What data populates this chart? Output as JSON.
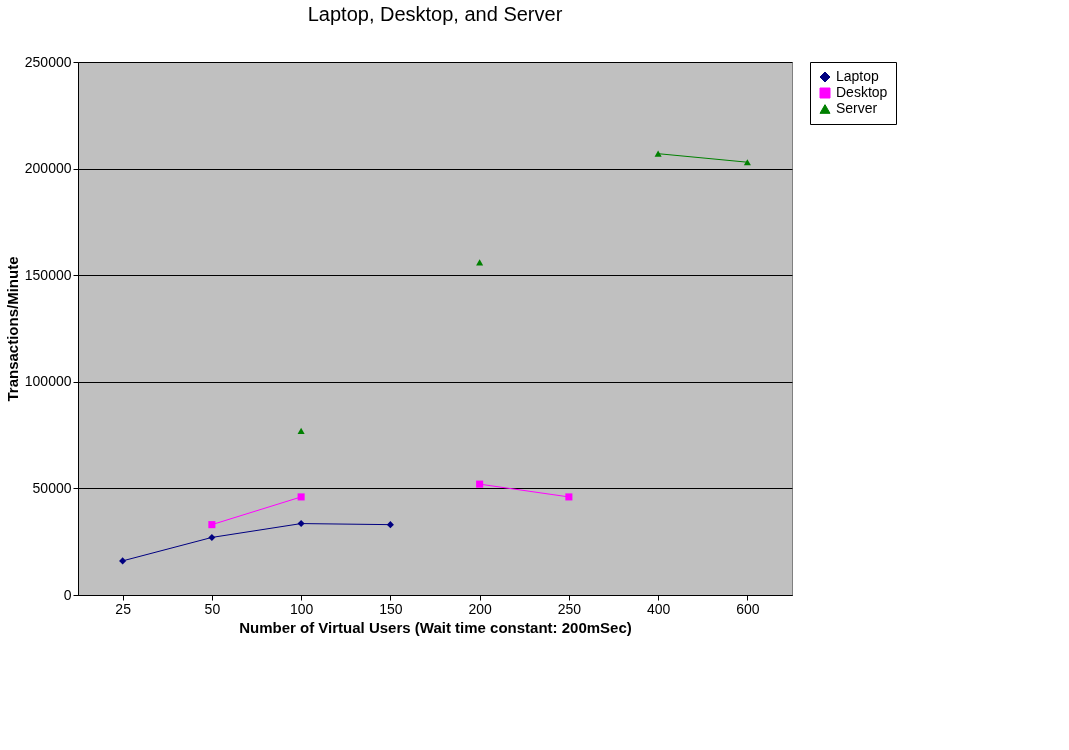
{
  "chart_data": {
    "type": "line",
    "title": "Laptop, Desktop, and Server",
    "xlabel": "Number of Virtual Users (Wait time constant: 200mSec)",
    "ylabel": "Transactions/Minute",
    "categories": [
      "25",
      "50",
      "100",
      "150",
      "200",
      "250",
      "400",
      "600"
    ],
    "series": [
      {
        "name": "Laptop",
        "color": "#000080",
        "marker": "diamond",
        "values": [
          16000,
          27000,
          33500,
          33000,
          null,
          null,
          null,
          null
        ]
      },
      {
        "name": "Desktop",
        "color": "#ff00ff",
        "marker": "square",
        "values": [
          null,
          33000,
          46000,
          null,
          52000,
          46000,
          null,
          null
        ]
      },
      {
        "name": "Server",
        "color": "#008000",
        "marker": "triangle",
        "values": [
          null,
          null,
          77000,
          null,
          156000,
          null,
          207000,
          203000
        ]
      }
    ],
    "ylim": [
      0,
      250000
    ],
    "yticks": [
      0,
      50000,
      100000,
      150000,
      200000,
      250000
    ],
    "grid": "y",
    "legend": "right",
    "line_style": "solid"
  }
}
